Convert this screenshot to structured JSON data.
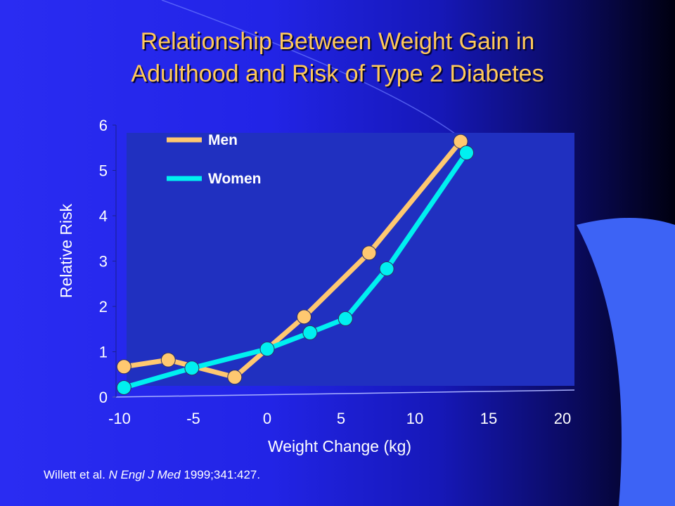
{
  "slide": {
    "title_line1": "Relationship Between Weight Gain in",
    "title_line2": "Adulthood and Risk of Type 2 Diabetes",
    "citation_authors": "Willett et al. ",
    "citation_journal": "N Engl J Med",
    "citation_ref": " 1999;341:427."
  },
  "colors": {
    "title": "#ffc95a",
    "men": "#ffc870",
    "women": "#00f0f0",
    "plot_bg": "#2030c0",
    "axis_text": "#ffffff"
  },
  "chart_data": {
    "type": "line",
    "title": "",
    "xlabel": "Weight Change (kg)",
    "ylabel": "Relative Risk",
    "xlim": [
      -10,
      20
    ],
    "ylim": [
      0,
      6
    ],
    "x_ticks": [
      "-10",
      "-5",
      "0",
      "5",
      "10",
      "15",
      "20"
    ],
    "y_ticks": [
      "0",
      "1",
      "2",
      "3",
      "4",
      "5",
      "6"
    ],
    "legend_position": "top-left",
    "grid": false,
    "series": [
      {
        "name": "Men",
        "color": "#ffc870",
        "points": [
          {
            "x": -9.7,
            "y": 0.67
          },
          {
            "x": -6.7,
            "y": 0.82
          },
          {
            "x": -2.2,
            "y": 0.44
          },
          {
            "x": 2.5,
            "y": 1.77
          },
          {
            "x": 6.9,
            "y": 3.18
          },
          {
            "x": 13.1,
            "y": 5.64
          }
        ]
      },
      {
        "name": "Women",
        "color": "#00f0f0",
        "points": [
          {
            "x": -9.7,
            "y": 0.21
          },
          {
            "x": -5.1,
            "y": 0.64
          },
          {
            "x": 0.0,
            "y": 1.06
          },
          {
            "x": 2.9,
            "y": 1.42
          },
          {
            "x": 5.3,
            "y": 1.73
          },
          {
            "x": 8.1,
            "y": 2.83
          },
          {
            "x": 13.5,
            "y": 5.39
          }
        ]
      }
    ]
  }
}
